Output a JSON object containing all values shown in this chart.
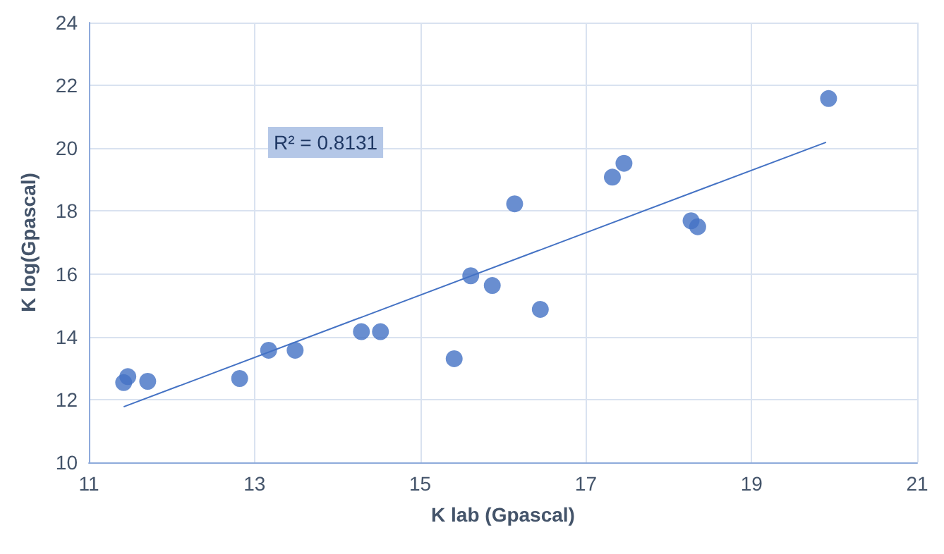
{
  "chart_data": {
    "type": "scatter",
    "xlabel": "K lab (Gpascal)",
    "ylabel": "K log(Gpascal)",
    "xlim": [
      11,
      21
    ],
    "xticks": [
      11,
      13,
      15,
      17,
      19,
      21
    ],
    "ylim": [
      10,
      24
    ],
    "yticks": [
      10,
      12,
      14,
      16,
      18,
      20,
      22,
      24
    ],
    "grid": true,
    "marker": "circle",
    "annotations": [
      "R² = 0.8131"
    ],
    "series": [
      {
        "color": "#4472c4",
        "x": [
          11.42,
          11.47,
          11.71,
          12.82,
          13.17,
          13.49,
          14.29,
          14.52,
          15.41,
          15.61,
          15.87,
          16.14,
          16.45,
          17.32,
          17.46,
          18.27,
          18.35,
          19.93
        ],
        "values": [
          12.54,
          12.73,
          12.58,
          12.67,
          13.57,
          13.57,
          14.16,
          14.16,
          13.3,
          15.94,
          15.63,
          18.23,
          14.87,
          19.08,
          19.52,
          17.69,
          17.5,
          21.58
        ]
      },
      {
        "type": "line",
        "color": "#4472c4",
        "marker": "none",
        "x": [
          11.42,
          19.9
        ],
        "values": [
          11.77,
          20.19
        ]
      }
    ]
  }
}
